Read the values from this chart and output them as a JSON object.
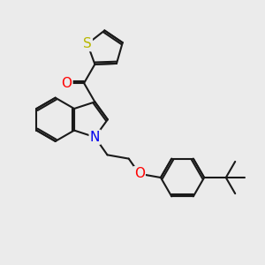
{
  "background_color": "#ebebeb",
  "bond_color": "#1a1a1a",
  "bond_width": 1.5,
  "atom_colors": {
    "S": "#b8b800",
    "O": "#ff0000",
    "N": "#0000ee"
  },
  "font_size": 10,
  "figsize": [
    3.0,
    3.0
  ],
  "dpi": 100
}
